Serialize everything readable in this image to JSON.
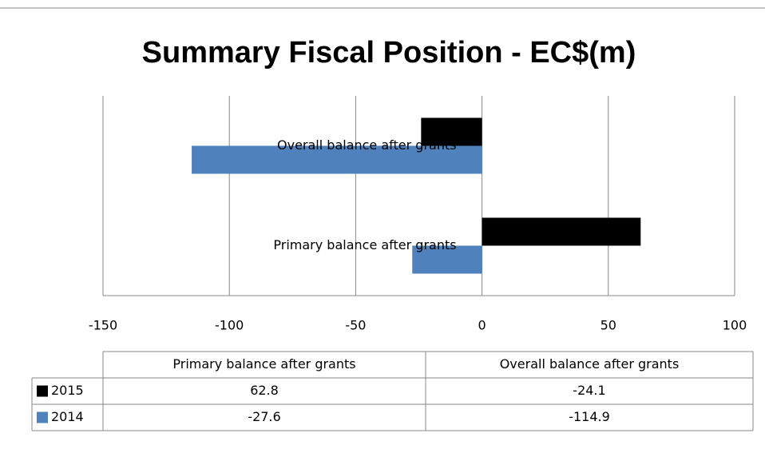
{
  "chart_data": {
    "type": "hbar",
    "title": "Summary Fiscal Position - EC$(m)",
    "categories": [
      "Primary balance after grants",
      "Overall balance after grants"
    ],
    "series": [
      {
        "name": "2015",
        "color": "#000000",
        "values": [
          62.8,
          -24.1
        ]
      },
      {
        "name": "2014",
        "color": "#4f81bd",
        "values": [
          -27.6,
          -114.9
        ]
      }
    ],
    "xlim": [
      -150,
      100
    ],
    "xticks": [
      -150,
      -100,
      -50,
      0,
      50,
      100
    ],
    "grid": true,
    "data_table": true
  }
}
